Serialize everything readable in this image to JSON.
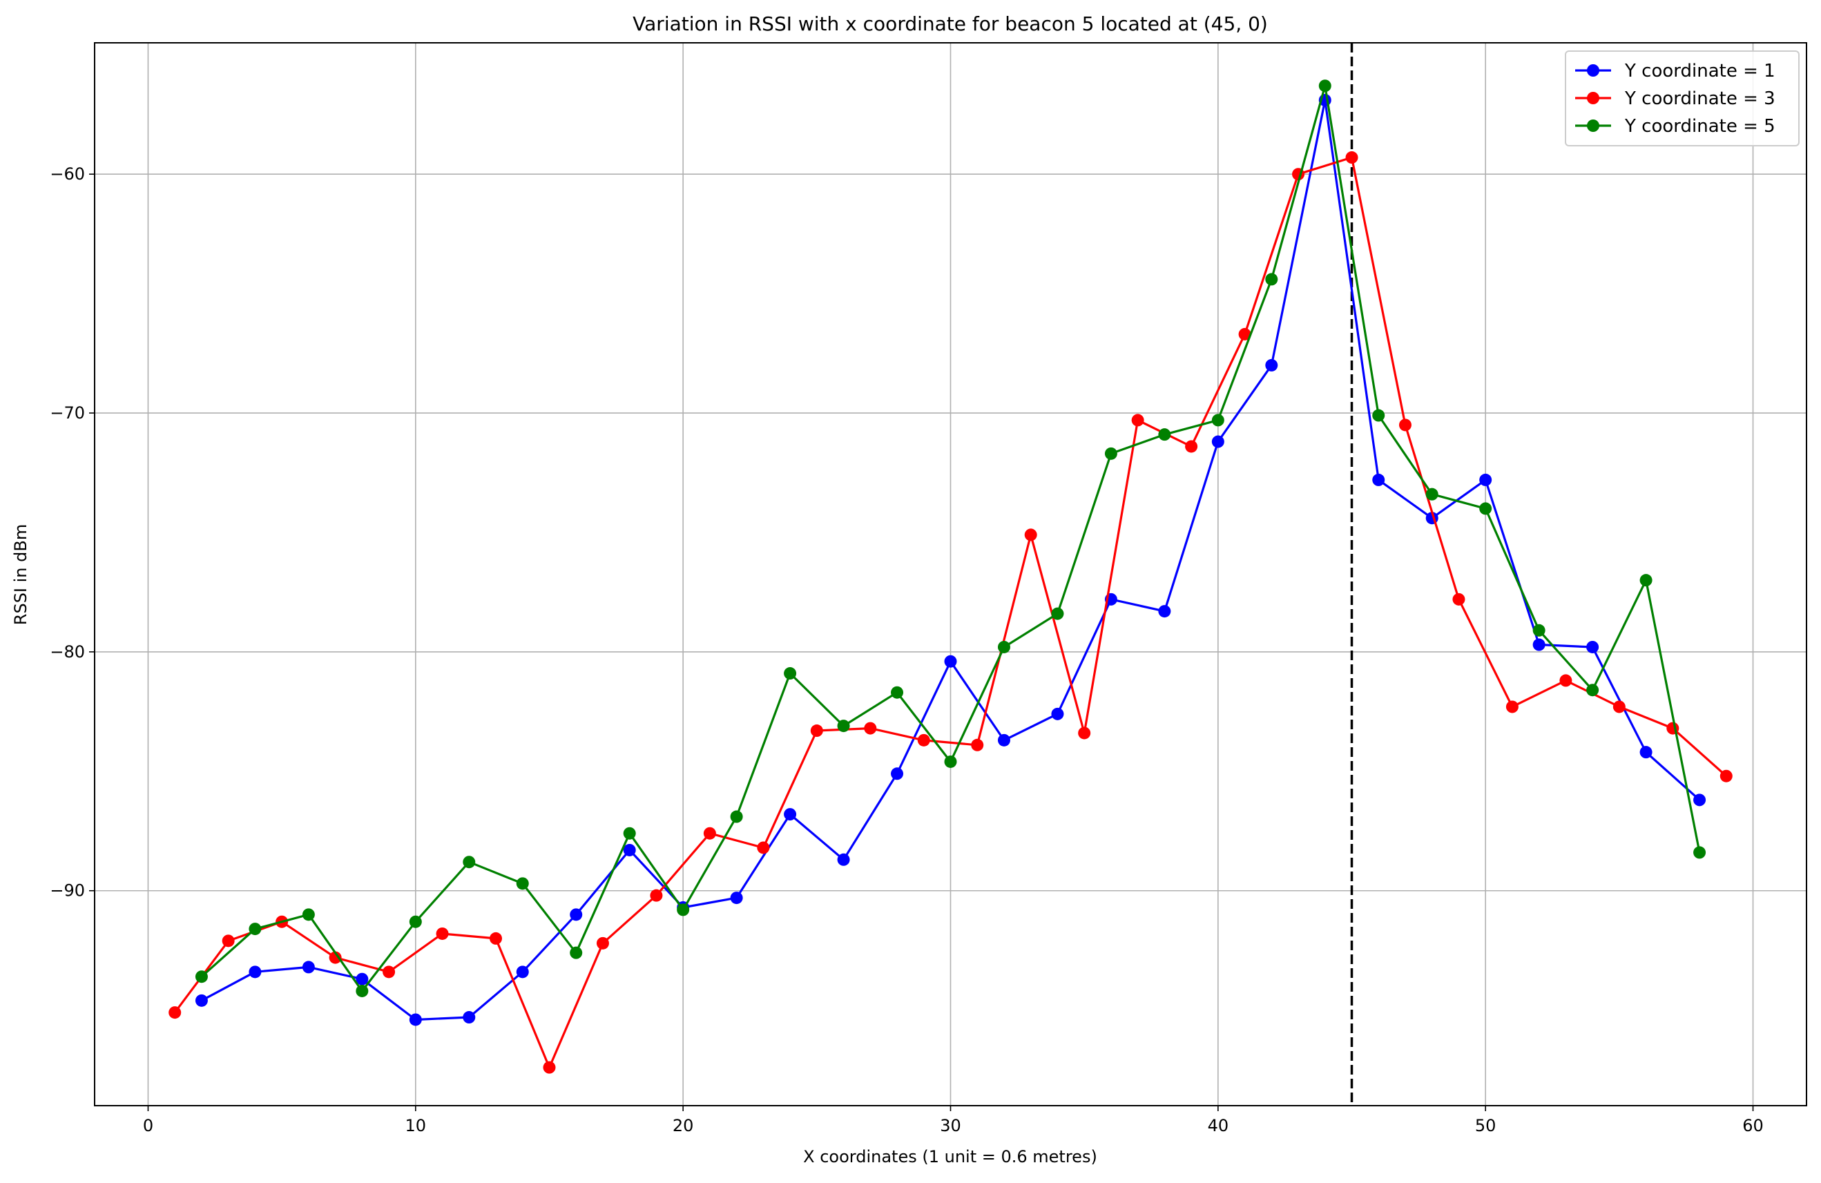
{
  "chart_data": {
    "type": "line",
    "title": "Variation in RSSI with x coordinate for beacon 5 located at (45, 0)",
    "xlabel": "X coordinates (1 unit = 0.6 metres)",
    "ylabel": "RSSI in dBm",
    "xlim": [
      -2,
      62
    ],
    "ylim": [
      -99,
      -54.5
    ],
    "xticks": [
      0,
      10,
      20,
      30,
      40,
      50,
      60
    ],
    "yticks": [
      -90,
      -80,
      -70,
      -60
    ],
    "grid": true,
    "legend_position": "top-right",
    "reference_line": {
      "x": 45,
      "style": "dashed",
      "color": "#000000"
    },
    "series": [
      {
        "name": "Y coordinate = 1",
        "color": "#0000ff",
        "x": [
          2,
          4,
          6,
          8,
          10,
          12,
          14,
          16,
          18,
          20,
          22,
          24,
          26,
          28,
          30,
          32,
          34,
          36,
          38,
          40,
          42,
          44,
          46,
          48,
          50,
          52,
          54,
          56,
          58
        ],
        "y": [
          -94.6,
          -93.4,
          -93.2,
          -93.7,
          -95.4,
          -95.3,
          -93.4,
          -91.0,
          -88.3,
          -90.7,
          -90.3,
          -86.8,
          -88.7,
          -85.1,
          -80.4,
          -83.7,
          -82.6,
          -77.8,
          -78.3,
          -71.2,
          -68.0,
          -56.9,
          -72.8,
          -74.4,
          -72.8,
          -79.7,
          -79.8,
          -84.2,
          -86.2
        ]
      },
      {
        "name": "Y coordinate = 3",
        "color": "#ff0000",
        "x": [
          1,
          3,
          5,
          7,
          9,
          11,
          13,
          15,
          17,
          19,
          21,
          23,
          25,
          27,
          29,
          31,
          33,
          35,
          37,
          39,
          41,
          43,
          45,
          47,
          49,
          51,
          53,
          55,
          57,
          59
        ],
        "y": [
          -95.1,
          -92.1,
          -91.3,
          -92.8,
          -93.4,
          -91.8,
          -92.0,
          -97.4,
          -92.2,
          -90.2,
          -87.6,
          -88.2,
          -83.3,
          -83.2,
          -83.7,
          -83.9,
          -75.1,
          -83.4,
          -70.3,
          -71.4,
          -66.7,
          -60.0,
          -59.3,
          -70.5,
          -77.8,
          -82.3,
          -81.2,
          -82.3,
          -83.2,
          -85.2
        ]
      },
      {
        "name": "Y coordinate = 5",
        "color": "#008000",
        "x": [
          2,
          4,
          6,
          8,
          10,
          12,
          14,
          16,
          18,
          20,
          22,
          24,
          26,
          28,
          30,
          32,
          34,
          36,
          38,
          40,
          42,
          44,
          46,
          48,
          50,
          52,
          54,
          56,
          58
        ],
        "y": [
          -93.6,
          -91.6,
          -91.0,
          -94.2,
          -91.3,
          -88.8,
          -89.7,
          -92.6,
          -87.6,
          -90.8,
          -86.9,
          -80.9,
          -83.1,
          -81.7,
          -84.6,
          -79.8,
          -78.4,
          -71.7,
          -70.9,
          -70.3,
          -64.4,
          -56.3,
          -70.1,
          -73.4,
          -74.0,
          -79.1,
          -81.6,
          -77.0,
          -88.4
        ]
      }
    ]
  }
}
